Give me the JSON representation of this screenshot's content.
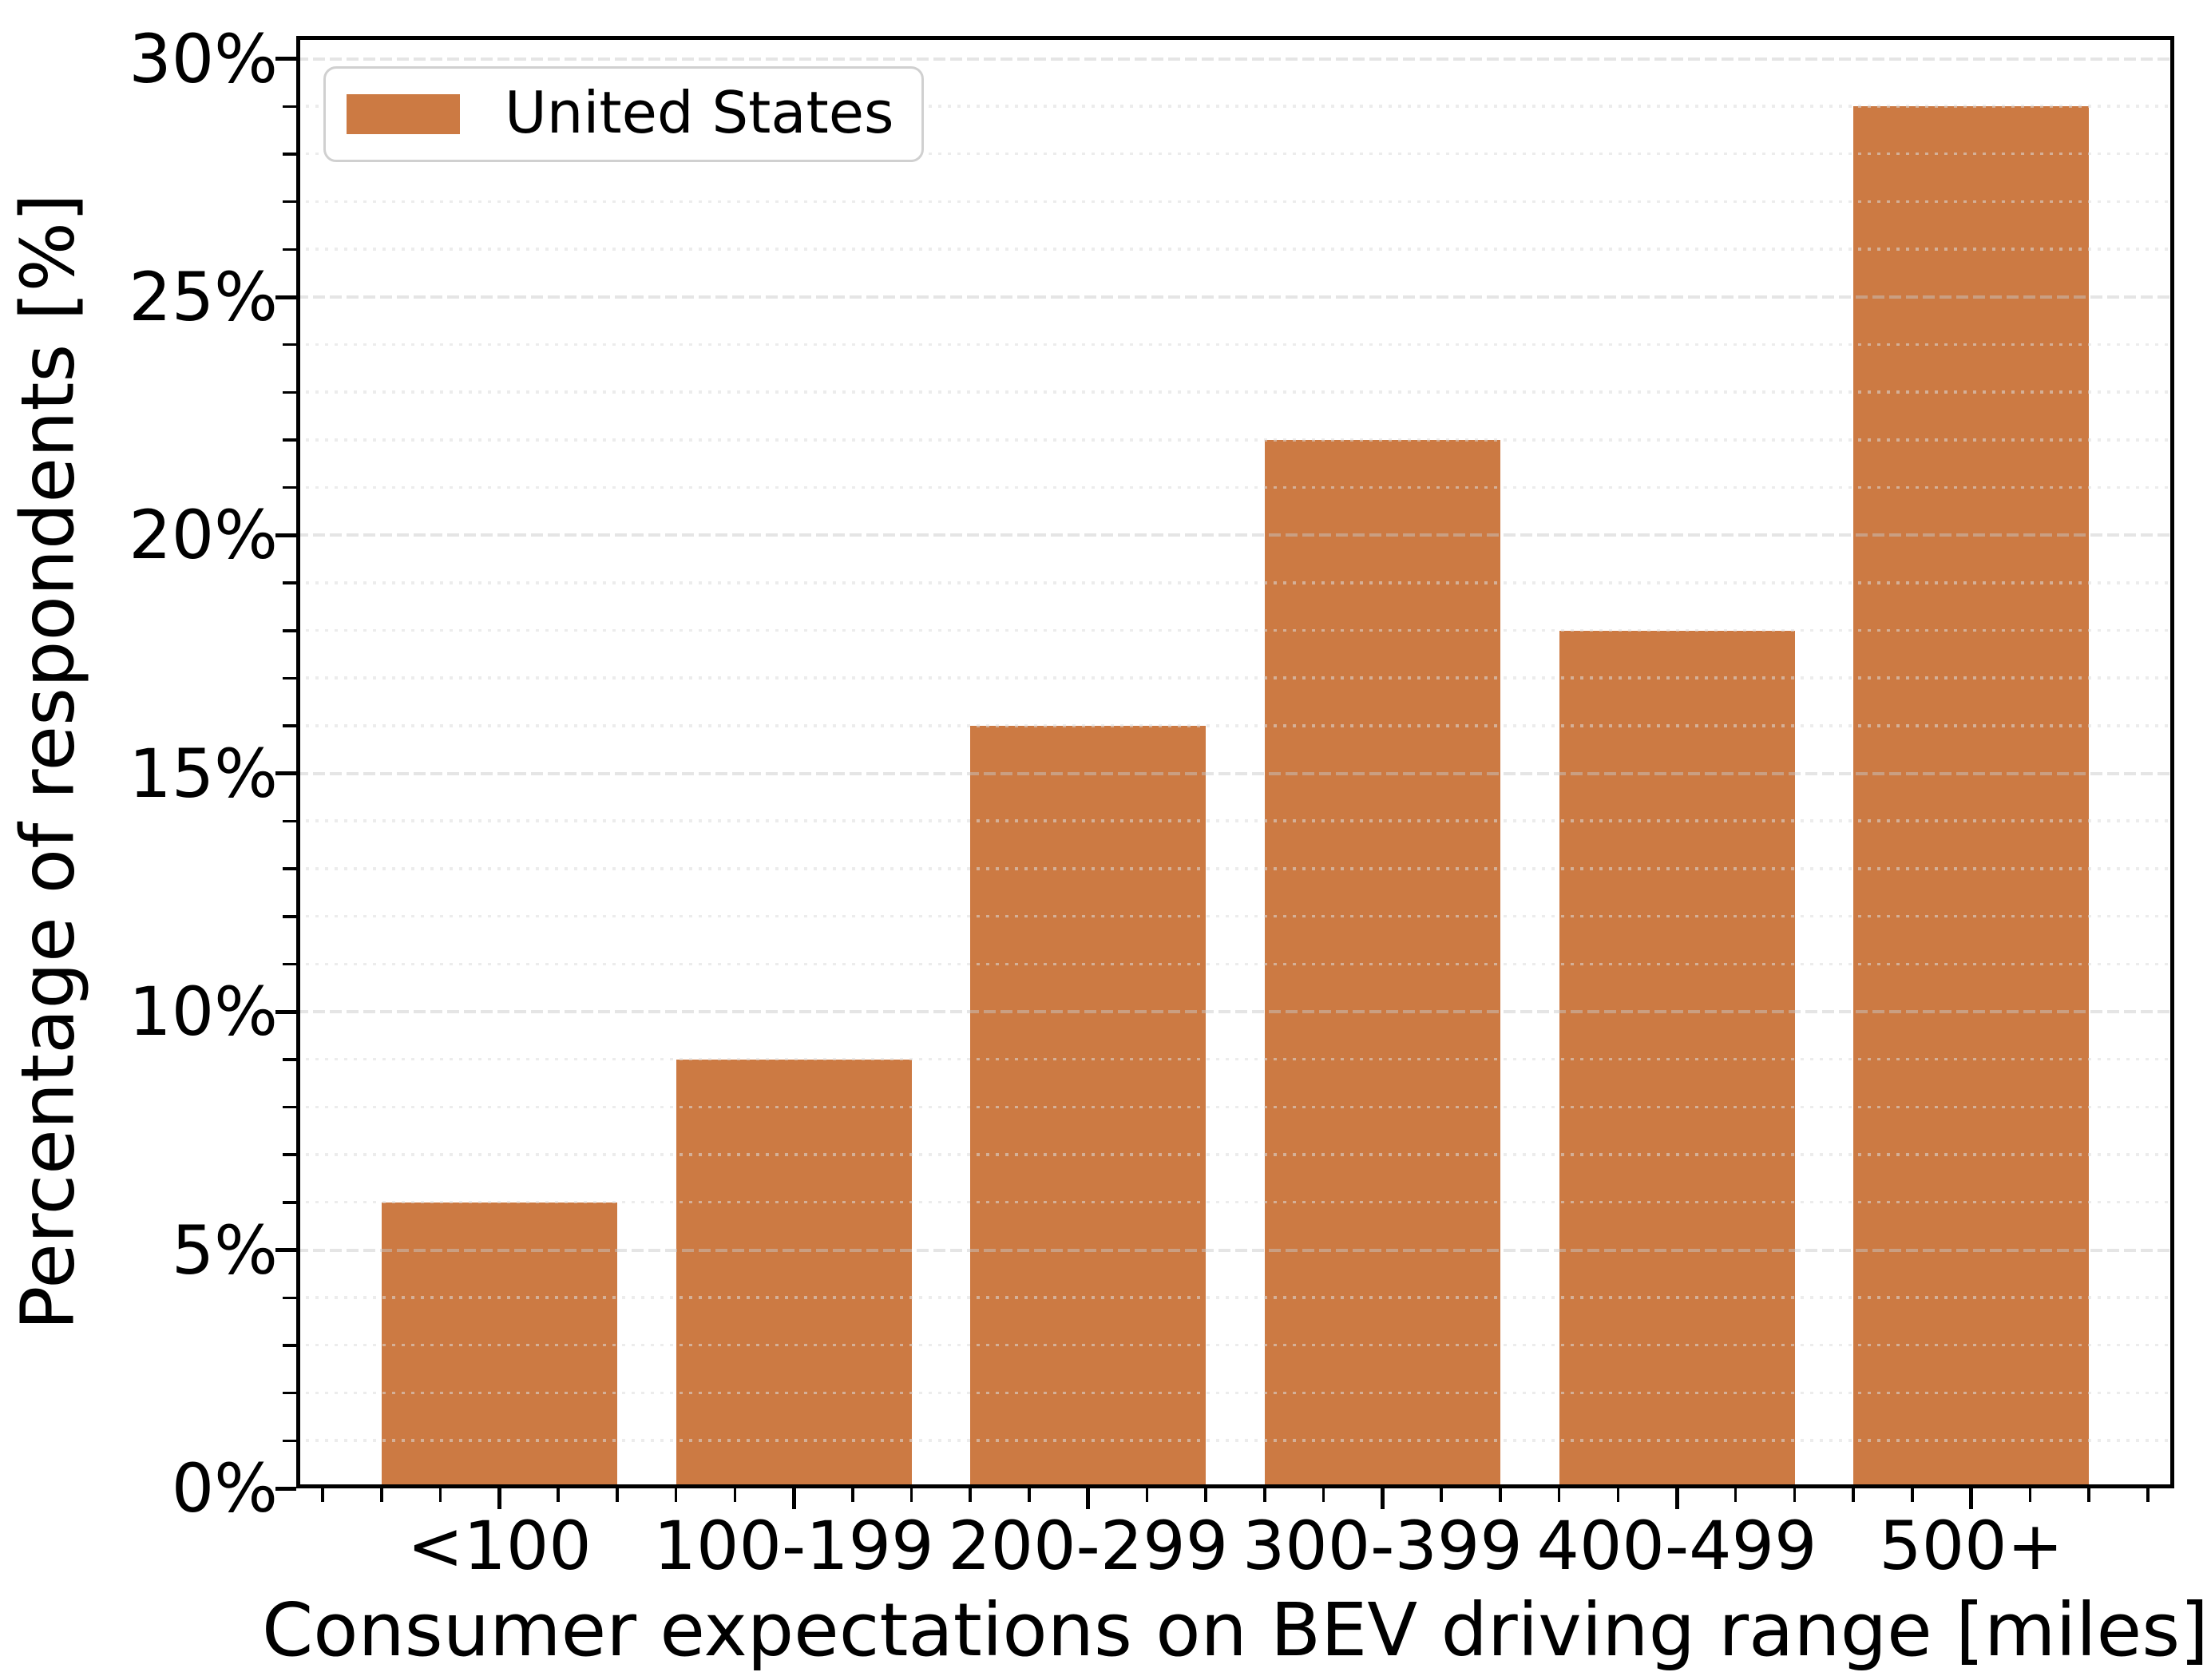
{
  "chart_data": {
    "type": "bar",
    "title": "",
    "xlabel": "Consumer expectations on BEV driving range [miles]",
    "ylabel": "Percentage of respondents [%]",
    "categories": [
      "<100",
      "100-199",
      "200-299",
      "300-399",
      "400-499",
      "500+"
    ],
    "series": [
      {
        "name": "United States",
        "values": [
          6,
          9,
          16,
          22,
          18,
          29
        ],
        "color": "#CC7A43"
      }
    ],
    "ylim": [
      0,
      30.5
    ],
    "ytick_step": 5,
    "ytick_labels": [
      "0%",
      "5%",
      "10%",
      "15%",
      "20%",
      "25%",
      "30%"
    ],
    "yminor_interval": 1,
    "xminor_divisions": 5,
    "grid": {
      "major_style": "dashed",
      "minor_style": "dotted",
      "major_color": "#E3E3E3",
      "minor_color": "#EFEFEF",
      "grid_on_top_of_bars": true,
      "vertical_grid": false
    },
    "legend": {
      "position": "upper left",
      "label": "United States"
    }
  },
  "colors": {
    "bar": "#CC7A43",
    "text": "#000000",
    "spine": "#000000",
    "legend_border": "#D0D0D0",
    "background": "#FFFFFF"
  }
}
